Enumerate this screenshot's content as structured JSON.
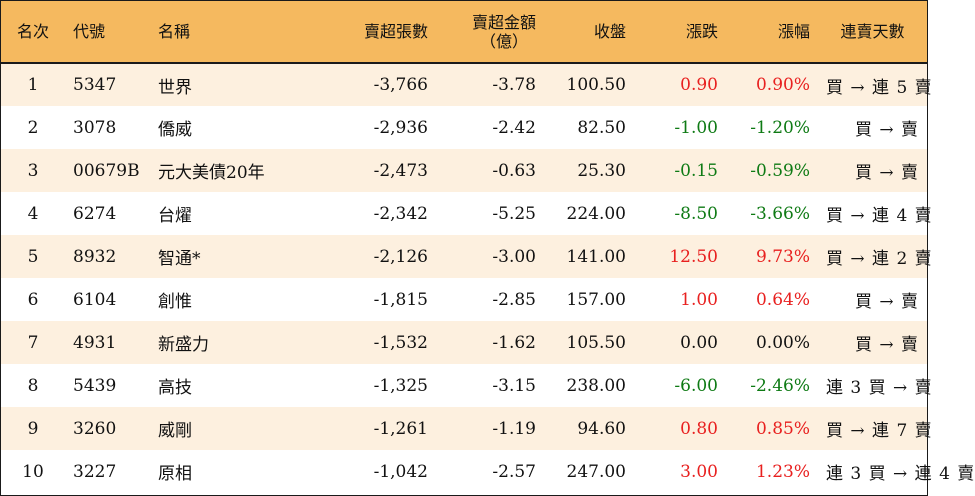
{
  "headers": {
    "rank": "名次",
    "code": "代號",
    "name": "名稱",
    "sell_lots": "賣超張數",
    "sell_amount_line1": "賣超金額",
    "sell_amount_line2": "（億）",
    "close": "收盤",
    "change": "漲跌",
    "change_pct": "漲幅",
    "streak": "連賣天數"
  },
  "colors": {
    "header_bg": "#f5b95f",
    "odd_row_bg": "#fdf0df",
    "up": "#e8201f",
    "down": "#0e7a14"
  },
  "rows": [
    {
      "rank": "1",
      "code": "5347",
      "name": "世界",
      "sell_lots": "-3,766",
      "sell_amount": "-3.78",
      "close": "100.50",
      "change": "0.90",
      "change_pct": "0.90%",
      "direction": "up",
      "streak": "買 → 連 5 賣"
    },
    {
      "rank": "2",
      "code": "3078",
      "name": "僑威",
      "sell_lots": "-2,936",
      "sell_amount": "-2.42",
      "close": "82.50",
      "change": "-1.00",
      "change_pct": "-1.20%",
      "direction": "down",
      "streak": "買 → 賣"
    },
    {
      "rank": "3",
      "code": "00679B",
      "name": "元大美債20年",
      "sell_lots": "-2,473",
      "sell_amount": "-0.63",
      "close": "25.30",
      "change": "-0.15",
      "change_pct": "-0.59%",
      "direction": "down",
      "streak": "買 → 賣"
    },
    {
      "rank": "4",
      "code": "6274",
      "name": "台燿",
      "sell_lots": "-2,342",
      "sell_amount": "-5.25",
      "close": "224.00",
      "change": "-8.50",
      "change_pct": "-3.66%",
      "direction": "down",
      "streak": "買 → 連 4 賣"
    },
    {
      "rank": "5",
      "code": "8932",
      "name": "智通*",
      "sell_lots": "-2,126",
      "sell_amount": "-3.00",
      "close": "141.00",
      "change": "12.50",
      "change_pct": "9.73%",
      "direction": "up",
      "streak": "買 → 連 2 賣"
    },
    {
      "rank": "6",
      "code": "6104",
      "name": "創惟",
      "sell_lots": "-1,815",
      "sell_amount": "-2.85",
      "close": "157.00",
      "change": "1.00",
      "change_pct": "0.64%",
      "direction": "up",
      "streak": "買 → 賣"
    },
    {
      "rank": "7",
      "code": "4931",
      "name": "新盛力",
      "sell_lots": "-1,532",
      "sell_amount": "-1.62",
      "close": "105.50",
      "change": "0.00",
      "change_pct": "0.00%",
      "direction": "flat",
      "streak": "買 → 賣"
    },
    {
      "rank": "8",
      "code": "5439",
      "name": "高技",
      "sell_lots": "-1,325",
      "sell_amount": "-3.15",
      "close": "238.00",
      "change": "-6.00",
      "change_pct": "-2.46%",
      "direction": "down",
      "streak": "連 3 買 → 賣"
    },
    {
      "rank": "9",
      "code": "3260",
      "name": "威剛",
      "sell_lots": "-1,261",
      "sell_amount": "-1.19",
      "close": "94.60",
      "change": "0.80",
      "change_pct": "0.85%",
      "direction": "up",
      "streak": "買 → 連 7 賣"
    },
    {
      "rank": "10",
      "code": "3227",
      "name": "原相",
      "sell_lots": "-1,042",
      "sell_amount": "-2.57",
      "close": "247.00",
      "change": "3.00",
      "change_pct": "1.23%",
      "direction": "up",
      "streak": "連 3 買 → 連 4 賣"
    }
  ]
}
